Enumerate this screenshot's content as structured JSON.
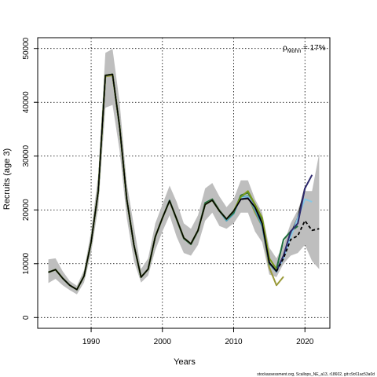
{
  "chart_data": {
    "type": "line",
    "xlabel": "Years",
    "ylabel": "Recruits (age 3)",
    "xlim": [
      1982.5,
      2023.5
    ],
    "ylim": [
      -2000,
      52000
    ],
    "x_ticks": [
      1990,
      2000,
      2010,
      2020
    ],
    "y_ticks": [
      0,
      10000,
      20000,
      30000,
      40000,
      50000
    ],
    "grid": true,
    "annotation": {
      "rho_symbol": "ρ",
      "subscript": "Mohn",
      "value": " = 17%"
    },
    "footer": "stockassessment.org, Scallops_NE_a13, r18602, git:c9c61ac53a0d",
    "band": {
      "x": [
        1984,
        1985,
        1986,
        1987,
        1988,
        1989,
        1990,
        1991,
        1992,
        1993,
        1994,
        1995,
        1996,
        1997,
        1998,
        1999,
        2000,
        2001,
        2002,
        2003,
        2004,
        2005,
        2006,
        2007,
        2008,
        2009,
        2010,
        2011,
        2012,
        2013,
        2014,
        2015,
        2016,
        2017,
        2018,
        2019,
        2020,
        2021,
        2022
      ],
      "lower": [
        6400,
        7200,
        6000,
        5100,
        4300,
        6500,
        12000,
        20500,
        39000,
        39500,
        31000,
        18500,
        10500,
        6500,
        7800,
        12500,
        16000,
        19000,
        15000,
        12000,
        11500,
        13500,
        18000,
        19500,
        17000,
        16500,
        17500,
        19500,
        19500,
        16000,
        14000,
        8000,
        7500,
        10000,
        11500,
        12000,
        13500,
        10500,
        9000
      ],
      "upper": [
        10800,
        11000,
        8600,
        6800,
        5900,
        8800,
        16000,
        26500,
        49200,
        49900,
        40000,
        25000,
        17000,
        9000,
        11000,
        17500,
        21000,
        24500,
        21500,
        17500,
        16500,
        19000,
        24000,
        25000,
        22500,
        20500,
        22000,
        25500,
        25500,
        22000,
        19500,
        13000,
        11000,
        13500,
        17500,
        20000,
        23500,
        23500,
        30500
      ]
    },
    "series": [
      {
        "color": "#9a9a3a",
        "x": [
          1984,
          1985,
          1986,
          1987,
          1988,
          1989,
          1990,
          1991,
          1992,
          1993,
          1994,
          1995,
          1996,
          1997,
          1998,
          1999,
          2000,
          2001,
          2002,
          2003,
          2004,
          2005,
          2006,
          2007,
          2008,
          2009,
          2010,
          2011,
          2012,
          2013,
          2014,
          2015,
          2016,
          2017
        ],
        "y": [
          8400,
          8900,
          7300,
          6000,
          5200,
          7700,
          14000,
          23500,
          44800,
          45000,
          35500,
          22000,
          13500,
          7500,
          9000,
          15000,
          18500,
          21700,
          18300,
          14800,
          13700,
          16200,
          21000,
          21800,
          19800,
          18300,
          19800,
          22200,
          22600,
          19500,
          17000,
          9300,
          6000,
          7600
        ]
      },
      {
        "color": "#46a0b4",
        "x": [
          1984,
          1985,
          1986,
          1987,
          1988,
          1989,
          1990,
          1991,
          1992,
          1993,
          1994,
          1995,
          1996,
          1997,
          1998,
          1999,
          2000,
          2001,
          2002,
          2003,
          2004,
          2005,
          2006,
          2007,
          2008,
          2009,
          2010,
          2011,
          2012,
          2013,
          2014,
          2015,
          2016,
          2017,
          2018
        ],
        "y": [
          8400,
          8900,
          7300,
          6000,
          5200,
          7700,
          14000,
          23500,
          45000,
          45200,
          35500,
          22000,
          13500,
          7500,
          9000,
          15000,
          18500,
          21800,
          18300,
          14800,
          13700,
          16200,
          21200,
          21900,
          19800,
          18000,
          19300,
          22500,
          22500,
          20000,
          17000,
          10000,
          8500,
          11500,
          15500
        ]
      },
      {
        "color": "#1f6e3c",
        "x": [
          1984,
          1985,
          1986,
          1987,
          1988,
          1989,
          1990,
          1991,
          1992,
          1993,
          1994,
          1995,
          1996,
          1997,
          1998,
          1999,
          2000,
          2001,
          2002,
          2003,
          2004,
          2005,
          2006,
          2007,
          2008,
          2009,
          2010,
          2011,
          2012,
          2013,
          2014,
          2015,
          2016,
          2017,
          2018,
          2019
        ],
        "y": [
          8400,
          8900,
          7300,
          6000,
          5200,
          7700,
          14000,
          23500,
          45000,
          45200,
          35500,
          22000,
          13500,
          7500,
          9000,
          15000,
          18500,
          21700,
          18200,
          14700,
          13600,
          16100,
          21300,
          22000,
          19900,
          18300,
          19500,
          22700,
          23200,
          21000,
          18000,
          10000,
          9000,
          14500,
          16000,
          17000
        ]
      },
      {
        "color": "#222222",
        "x": [
          1984,
          1985,
          1986,
          1987,
          1988,
          1989,
          1990,
          1991,
          1992,
          1993,
          1994,
          1995,
          1996,
          1997,
          1998,
          1999,
          2000,
          2001,
          2002,
          2003,
          2004,
          2005,
          2006,
          2007,
          2008,
          2009,
          2010,
          2011,
          2012,
          2013,
          2014,
          2015,
          2016,
          2017,
          2018,
          2019,
          2020
        ],
        "y": [
          8400,
          8900,
          7300,
          6000,
          5200,
          7700,
          14000,
          23500,
          45000,
          45200,
          35500,
          22000,
          13500,
          7500,
          9000,
          15000,
          18500,
          21700,
          18300,
          14800,
          13700,
          16200,
          21000,
          21800,
          19800,
          18300,
          19800,
          22000,
          22200,
          20500,
          17500,
          10200,
          8600,
          11500,
          15500,
          18500,
          24000
        ]
      },
      {
        "color": "#87c8e6",
        "x": [
          1984,
          1985,
          1986,
          1987,
          1988,
          1989,
          1990,
          1991,
          1992,
          1993,
          1994,
          1995,
          1996,
          1997,
          1998,
          1999,
          2000,
          2001,
          2002,
          2003,
          2004,
          2005,
          2006,
          2007,
          2008,
          2009,
          2010,
          2011,
          2012,
          2013,
          2014,
          2015,
          2016,
          2017,
          2018,
          2019,
          2020,
          2021
        ],
        "y": [
          8400,
          8900,
          7300,
          6000,
          5200,
          7700,
          14000,
          23500,
          45000,
          45200,
          35500,
          22000,
          13500,
          7500,
          9000,
          15000,
          18500,
          21700,
          18300,
          14800,
          13700,
          16200,
          21000,
          21800,
          19800,
          18300,
          19800,
          22200,
          22400,
          20500,
          17500,
          10200,
          8600,
          11000,
          15000,
          18500,
          22000,
          21500
        ]
      },
      {
        "color": "#2e2a6e",
        "x": [
          1984,
          1985,
          1986,
          1987,
          1988,
          1989,
          1990,
          1991,
          1992,
          1993,
          1994,
          1995,
          1996,
          1997,
          1998,
          1999,
          2000,
          2001,
          2002,
          2003,
          2004,
          2005,
          2006,
          2007,
          2008,
          2009,
          2010,
          2011,
          2012,
          2013,
          2014,
          2015,
          2016,
          2017,
          2018,
          2019,
          2020,
          2021
        ],
        "y": [
          8400,
          8900,
          7300,
          6000,
          5200,
          7700,
          14000,
          23500,
          45000,
          45200,
          35500,
          22000,
          13500,
          7500,
          9000,
          15000,
          18500,
          21700,
          18300,
          14800,
          13700,
          16200,
          21000,
          21800,
          19800,
          18300,
          19800,
          22000,
          22200,
          20500,
          17500,
          10200,
          8600,
          11500,
          16000,
          17500,
          24000,
          26500
        ]
      },
      {
        "color": "#7a9a1a",
        "x": [
          1984,
          1985,
          1986,
          1987,
          1988,
          1989,
          1990,
          1991,
          1992,
          1993,
          1994,
          1995,
          1996,
          1997,
          1998,
          1999,
          2000,
          2001,
          2002,
          2003,
          2004,
          2005,
          2006,
          2007,
          2008,
          2009,
          2010,
          2011,
          2012,
          2013,
          2014,
          2015,
          2016
        ],
        "y": [
          8400,
          8900,
          7300,
          6000,
          5200,
          7700,
          14000,
          23500,
          45000,
          45200,
          35500,
          22000,
          13500,
          7500,
          9000,
          15000,
          18500,
          21700,
          18300,
          14800,
          13700,
          16200,
          21000,
          21800,
          19800,
          18300,
          19800,
          22400,
          23500,
          21000,
          18500,
          11000,
          9000
        ]
      }
    ],
    "main_series": {
      "color": "#000000",
      "x_solid": [
        1984,
        1985,
        1986,
        1987,
        1988,
        1989,
        1990,
        1991,
        1992,
        1993,
        1994,
        1995,
        1996,
        1997,
        1998,
        1999,
        2000,
        2001,
        2002,
        2003,
        2004,
        2005,
        2006,
        2007,
        2008,
        2009,
        2010,
        2011,
        2012,
        2013,
        2014,
        2015,
        2016
      ],
      "y_solid": [
        8400,
        8900,
        7300,
        6000,
        5200,
        7700,
        14000,
        23500,
        45000,
        45200,
        35500,
        22000,
        13500,
        7500,
        9000,
        15000,
        18500,
        21700,
        18300,
        14800,
        13700,
        16200,
        21000,
        21800,
        19800,
        18300,
        19800,
        22000,
        22100,
        20500,
        17500,
        10200,
        8600
      ],
      "x_dashed": [
        2016,
        2017,
        2018,
        2019,
        2020,
        2021,
        2022
      ],
      "y_dashed": [
        8600,
        11000,
        14500,
        15200,
        18000,
        16200,
        16500
      ]
    }
  }
}
